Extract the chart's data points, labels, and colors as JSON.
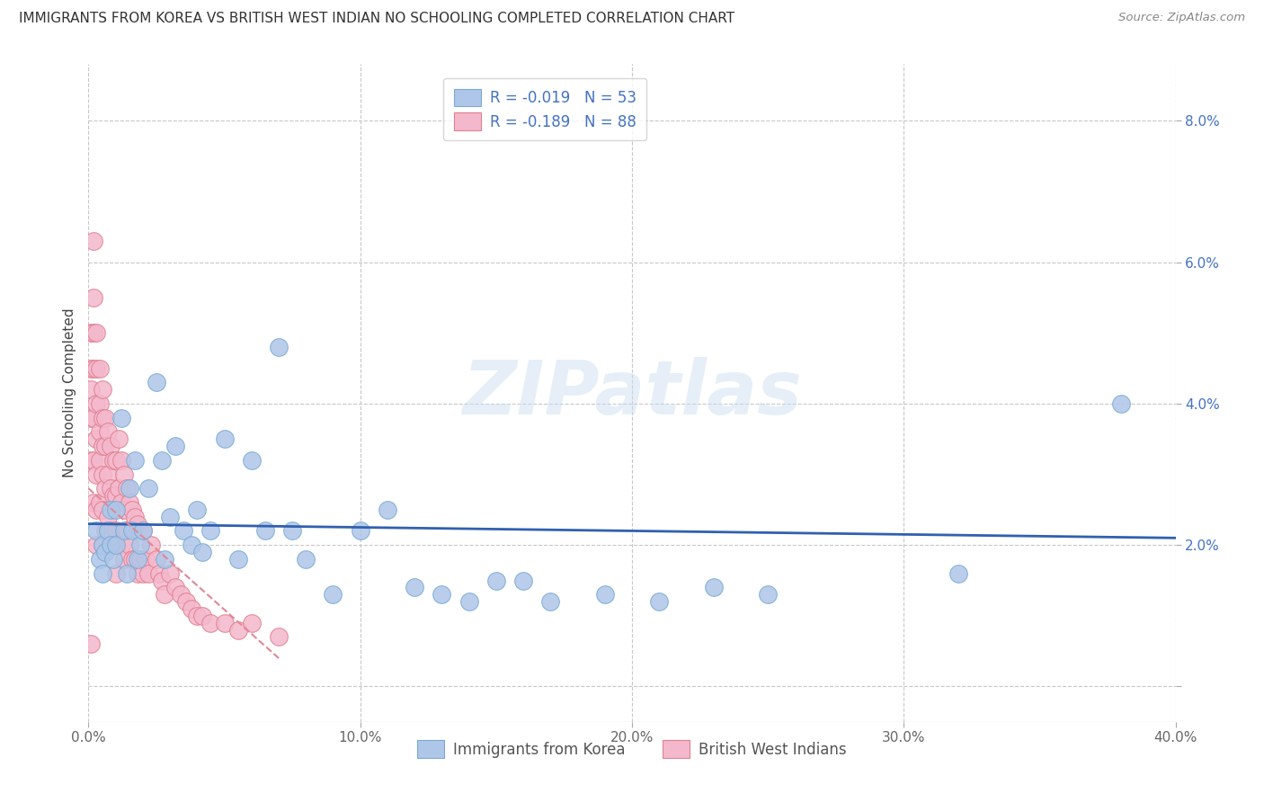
{
  "title": "IMMIGRANTS FROM KOREA VS BRITISH WEST INDIAN NO SCHOOLING COMPLETED CORRELATION CHART",
  "source": "Source: ZipAtlas.com",
  "ylabel": "No Schooling Completed",
  "xlim": [
    0.0,
    0.4
  ],
  "ylim": [
    -0.005,
    0.088
  ],
  "xtick_vals": [
    0.0,
    0.1,
    0.2,
    0.3,
    0.4
  ],
  "xtick_labels": [
    "0.0%",
    "10.0%",
    "20.0%",
    "30.0%",
    "40.0%"
  ],
  "ytick_vals": [
    0.0,
    0.02,
    0.04,
    0.06,
    0.08
  ],
  "ytick_labels_right": [
    "",
    "2.0%",
    "4.0%",
    "6.0%",
    "8.0%"
  ],
  "legend_line1": "R = -0.019   N = 53",
  "legend_line2": "R = -0.189   N = 88",
  "legend_bottom_1": "Immigrants from Korea",
  "legend_bottom_2": "British West Indians",
  "korea_color": "#aec6e8",
  "korea_edge_color": "#7aaad4",
  "bwi_color": "#f4b8cc",
  "bwi_edge_color": "#e08090",
  "trend_korea_color": "#3060b0",
  "trend_bwi_color": "#e08898",
  "grid_color": "#c8c8c8",
  "watermark": "ZIPatlas",
  "korea_x": [
    0.003,
    0.004,
    0.005,
    0.005,
    0.006,
    0.007,
    0.008,
    0.008,
    0.009,
    0.01,
    0.01,
    0.012,
    0.013,
    0.014,
    0.015,
    0.016,
    0.017,
    0.018,
    0.019,
    0.02,
    0.022,
    0.025,
    0.027,
    0.028,
    0.03,
    0.032,
    0.035,
    0.038,
    0.04,
    0.042,
    0.045,
    0.05,
    0.055,
    0.06,
    0.065,
    0.07,
    0.075,
    0.08,
    0.09,
    0.1,
    0.11,
    0.12,
    0.13,
    0.14,
    0.15,
    0.16,
    0.17,
    0.19,
    0.21,
    0.23,
    0.25,
    0.32,
    0.38
  ],
  "korea_y": [
    0.022,
    0.018,
    0.02,
    0.016,
    0.019,
    0.022,
    0.025,
    0.02,
    0.018,
    0.025,
    0.02,
    0.038,
    0.022,
    0.016,
    0.028,
    0.022,
    0.032,
    0.018,
    0.02,
    0.022,
    0.028,
    0.043,
    0.032,
    0.018,
    0.024,
    0.034,
    0.022,
    0.02,
    0.025,
    0.019,
    0.022,
    0.035,
    0.018,
    0.032,
    0.022,
    0.048,
    0.022,
    0.018,
    0.013,
    0.022,
    0.025,
    0.014,
    0.013,
    0.012,
    0.015,
    0.015,
    0.012,
    0.013,
    0.012,
    0.014,
    0.013,
    0.016,
    0.04
  ],
  "bwi_x": [
    0.001,
    0.001,
    0.001,
    0.001,
    0.001,
    0.002,
    0.002,
    0.002,
    0.002,
    0.002,
    0.002,
    0.003,
    0.003,
    0.003,
    0.003,
    0.003,
    0.003,
    0.003,
    0.004,
    0.004,
    0.004,
    0.004,
    0.004,
    0.005,
    0.005,
    0.005,
    0.005,
    0.005,
    0.005,
    0.006,
    0.006,
    0.006,
    0.006,
    0.007,
    0.007,
    0.007,
    0.008,
    0.008,
    0.008,
    0.009,
    0.009,
    0.009,
    0.01,
    0.01,
    0.01,
    0.01,
    0.011,
    0.011,
    0.012,
    0.012,
    0.012,
    0.013,
    0.013,
    0.013,
    0.014,
    0.014,
    0.015,
    0.015,
    0.016,
    0.016,
    0.017,
    0.017,
    0.018,
    0.018,
    0.019,
    0.02,
    0.02,
    0.021,
    0.022,
    0.023,
    0.025,
    0.026,
    0.027,
    0.028,
    0.03,
    0.032,
    0.034,
    0.036,
    0.038,
    0.04,
    0.042,
    0.045,
    0.05,
    0.055,
    0.06,
    0.07,
    0.002,
    0.001
  ],
  "bwi_y": [
    0.05,
    0.045,
    0.042,
    0.038,
    0.032,
    0.055,
    0.05,
    0.045,
    0.038,
    0.032,
    0.026,
    0.05,
    0.045,
    0.04,
    0.035,
    0.03,
    0.025,
    0.02,
    0.045,
    0.04,
    0.036,
    0.032,
    0.026,
    0.042,
    0.038,
    0.034,
    0.03,
    0.025,
    0.02,
    0.038,
    0.034,
    0.028,
    0.022,
    0.036,
    0.03,
    0.024,
    0.034,
    0.028,
    0.022,
    0.032,
    0.027,
    0.02,
    0.032,
    0.027,
    0.022,
    0.016,
    0.035,
    0.028,
    0.032,
    0.026,
    0.02,
    0.03,
    0.025,
    0.018,
    0.028,
    0.022,
    0.026,
    0.02,
    0.025,
    0.018,
    0.024,
    0.018,
    0.023,
    0.016,
    0.018,
    0.022,
    0.016,
    0.018,
    0.016,
    0.02,
    0.018,
    0.016,
    0.015,
    0.013,
    0.016,
    0.014,
    0.013,
    0.012,
    0.011,
    0.01,
    0.01,
    0.009,
    0.009,
    0.008,
    0.009,
    0.007,
    0.063,
    0.006
  ],
  "korea_trend_x": [
    0.0,
    0.4
  ],
  "korea_trend_y": [
    0.023,
    0.021
  ],
  "bwi_trend_x": [
    0.0,
    0.07
  ],
  "bwi_trend_y": [
    0.028,
    0.004
  ]
}
